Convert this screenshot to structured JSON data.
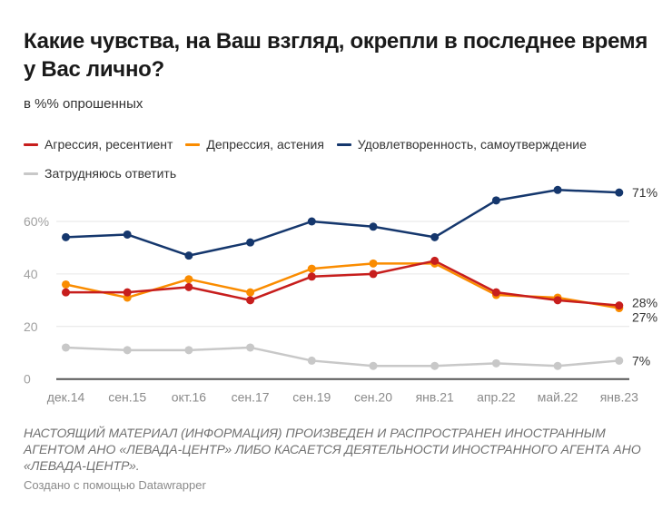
{
  "header": {
    "title": "Какие чувства, на Ваш взгляд, окрепли в последнее время у Вас лично?",
    "subtitle": "в %% опрошенных"
  },
  "footer": {
    "notice": "НАСТОЯЩИЙ МАТЕРИАЛ (ИНФОРМАЦИЯ) ПРОИЗВЕДЕН И РАСПРОСТРАНЕН ИНОСТРАННЫМ АГЕНТОМ АНО «ЛЕВАДА-ЦЕНТР» ЛИБО КАСАЕТСЯ ДЕЯТЕЛЬНОСТИ ИНОСТРАННОГО АГЕНТА АНО «ЛЕВАДА-ЦЕНТР».",
    "credit": "Создано с помощью Datawrapper"
  },
  "chart_data": {
    "type": "line",
    "title": "Какие чувства, на Ваш взгляд, окрепли в последнее время у Вас лично?",
    "subtitle": "в %% опрошенных",
    "xlabel": "",
    "ylabel": "",
    "categories": [
      "дек.14",
      "сен.15",
      "окт.16",
      "сен.17",
      "сен.19",
      "сен.20",
      "янв.21",
      "апр.22",
      "май.22",
      "янв.23"
    ],
    "ylim": [
      0,
      60
    ],
    "yticks": [
      {
        "value": 0,
        "label": "0"
      },
      {
        "value": 20,
        "label": "20"
      },
      {
        "value": 40,
        "label": "40"
      },
      {
        "value": 60,
        "label": "60%"
      }
    ],
    "grid": true,
    "legend_position": "top-left",
    "series": [
      {
        "name": "Агрессия, ресентиент",
        "color": "#c71e1d",
        "values": [
          33,
          33,
          35,
          30,
          39,
          40,
          45,
          33,
          30,
          28
        ],
        "end_label": "28%"
      },
      {
        "name": "Депрессия, астения",
        "color": "#fa8c00",
        "values": [
          36,
          31,
          38,
          33,
          42,
          44,
          44,
          32,
          31,
          27
        ],
        "end_label": "27%"
      },
      {
        "name": "Удовлетворенность, самоутверждение",
        "color": "#15376d",
        "values": [
          54,
          55,
          47,
          52,
          60,
          58,
          54,
          68,
          72,
          71
        ],
        "end_label": "71%"
      },
      {
        "name": "Затрудняюсь ответить",
        "color": "#c8c8c8",
        "values": [
          12,
          11,
          11,
          12,
          7,
          5,
          5,
          6,
          5,
          7
        ],
        "end_label": "7%"
      }
    ]
  }
}
